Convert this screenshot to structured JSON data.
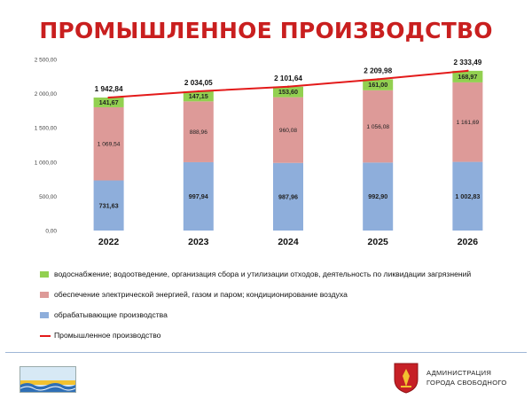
{
  "header": {
    "title": "ПРОМЫШЛЕННОЕ ПРОИЗВОДСТВО"
  },
  "chart_data": {
    "type": "bar",
    "stacked": true,
    "categories": [
      "2022",
      "2023",
      "2024",
      "2025",
      "2026"
    ],
    "ylim": [
      0,
      2500
    ],
    "yticks": [
      0,
      500,
      1000,
      1500,
      2000,
      2500
    ],
    "ytick_labels": [
      "0,00",
      "500,00",
      "1 000,00",
      "1 500,00",
      "2 000,00",
      "2 500,00"
    ],
    "series": [
      {
        "name": "обрабатывающие производства",
        "color": "#8eaedb",
        "values": [
          731.63,
          997.94,
          987.96,
          992.9,
          1002.83
        ],
        "labels": [
          "731,63",
          "997,94",
          "987,96",
          "992,90",
          "1 002,83"
        ]
      },
      {
        "name": "обеспечение электрической энергией, газом и паром; кондиционирование воздуха",
        "color": "#dd9a98",
        "values": [
          1069.54,
          888.96,
          960.08,
          1056.08,
          1161.69
        ],
        "labels": [
          "1 069,54",
          "888,96",
          "960,08",
          "1 056,08",
          "1 161,69"
        ]
      },
      {
        "name": "водоснабжение; водоотведение, организация сбора и утилизации отходов, деятельность по ликвидации загрязнений",
        "color": "#92d050",
        "values": [
          141.67,
          147.15,
          153.6,
          161.0,
          168.97
        ],
        "labels": [
          "141,67",
          "147,15",
          "153,60",
          "161,00",
          "168,97"
        ]
      }
    ],
    "line": {
      "name": "Промышленное производство",
      "color": "#e31a1a",
      "values": [
        1942.84,
        2034.05,
        2101.64,
        2209.98,
        2333.49
      ],
      "labels": [
        "1 942,84",
        "2 034,05",
        "2 101,64",
        "2 209,98",
        "2 333,49"
      ]
    },
    "grid": false,
    "legend_position": "bottom"
  },
  "legend": {
    "items": [
      {
        "label": "водоснабжение; водоотведение, организация сбора и утилизации отходов, деятельность по ликвидации загрязнений",
        "color": "#92d050",
        "kind": "bar"
      },
      {
        "label": "обеспечение электрической энергией, газом и паром; кондиционирование воздуха",
        "color": "#dd9a98",
        "kind": "bar"
      },
      {
        "label": "обрабатывающие производства",
        "color": "#8eaedb",
        "kind": "bar"
      },
      {
        "label": "Промышленное производство",
        "color": "#e31a1a",
        "kind": "line"
      }
    ]
  },
  "footer": {
    "admin_line1": "АДМИНИСТРАЦИЯ",
    "admin_line2": "ГОРОДА СВОБОДНОГО",
    "flag_icon": "city-flag-icon",
    "emblem_icon": "coat-of-arms-icon"
  }
}
